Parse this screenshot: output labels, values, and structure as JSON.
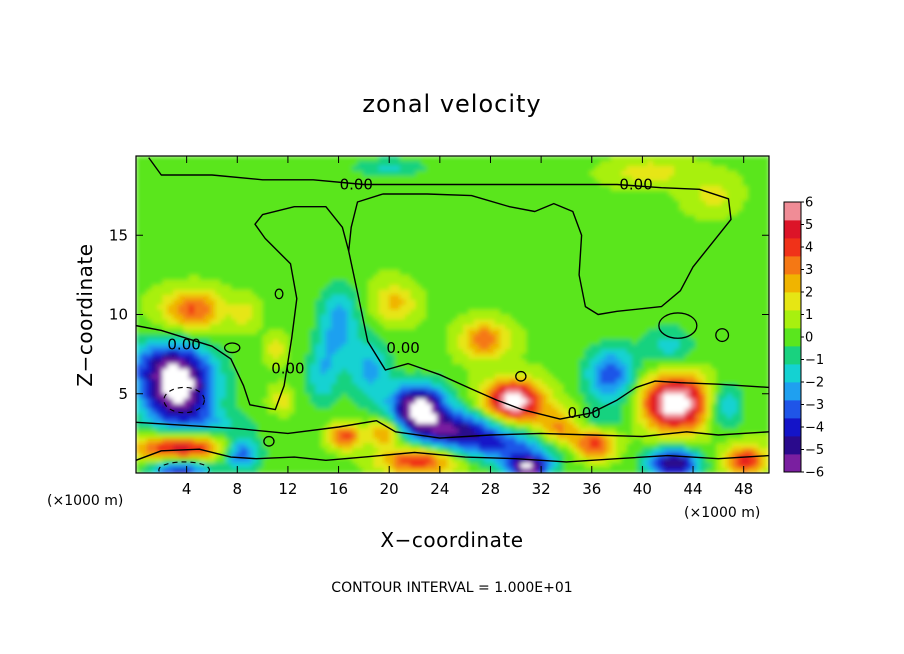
{
  "chart_data": {
    "type": "heatmap",
    "title": "zonal velocity",
    "xlabel": "X−coordinate",
    "ylabel": "Z−coordinate",
    "x_unit_left": "(×1000 m)",
    "x_unit_right": "(×1000 m)",
    "xlim": [
      0,
      50
    ],
    "ylim": [
      0,
      20
    ],
    "xticks": [
      4,
      8,
      12,
      16,
      20,
      24,
      28,
      32,
      36,
      40,
      44,
      48
    ],
    "yticks": [
      5,
      10,
      15
    ],
    "footer": "CONTOUR INTERVAL = 1.000E+01",
    "colorbar": {
      "range": [
        -6,
        6
      ],
      "tick_labels": [
        "6",
        "5",
        "4",
        "3",
        "2",
        "1",
        "0",
        "−1",
        "−2",
        "−3",
        "−4",
        "−5",
        "−6"
      ],
      "colors": [
        "#7a1fa0",
        "#2a0a8c",
        "#1414c8",
        "#1f55e8",
        "#1fa0f0",
        "#14d2d2",
        "#19d27f",
        "#5ae61e",
        "#a8f00f",
        "#e6e614",
        "#f0b400",
        "#f57814",
        "#f03219",
        "#dc1428",
        "#f08c96"
      ]
    },
    "contour_labels": [
      {
        "text": "0.00",
        "x": 17.4,
        "z": 18.2
      },
      {
        "text": "0.00",
        "x": 39.5,
        "z": 18.2
      },
      {
        "text": "0.00",
        "x": 3.8,
        "z": 8.1
      },
      {
        "text": "0.00",
        "x": 12.0,
        "z": 6.6
      },
      {
        "text": "0.00",
        "x": 21.1,
        "z": 7.9
      },
      {
        "text": "0.00",
        "x": 35.4,
        "z": 3.8
      }
    ],
    "features": [
      {
        "x": 4.5,
        "z": 10.3,
        "v": 3.6,
        "sx": 2.4,
        "sz": 1.3
      },
      {
        "x": 20.5,
        "z": 10.7,
        "v": 2.0,
        "sx": 1.7,
        "sz": 1.2
      },
      {
        "x": 27.5,
        "z": 8.4,
        "v": 3.2,
        "sx": 1.9,
        "sz": 1.2
      },
      {
        "x": 8.6,
        "z": 10.0,
        "v": 1.3,
        "sx": 1.0,
        "sz": 1.0
      },
      {
        "x": 3.3,
        "z": 5.2,
        "v": -6.8,
        "sx": 2.9,
        "sz": 2.3
      },
      {
        "x": 2.0,
        "z": 7.0,
        "v": -2.3,
        "sx": 3.5,
        "sz": 1.5
      },
      {
        "x": 16.0,
        "z": 9.5,
        "v": -2.8,
        "sx": 1.6,
        "sz": 2.5
      },
      {
        "x": 14.7,
        "z": 6.2,
        "v": -2.0,
        "sx": 1.3,
        "sz": 2.0
      },
      {
        "x": 18.5,
        "z": 6.5,
        "v": -2.5,
        "sx": 1.6,
        "sz": 2.0
      },
      {
        "x": 22.3,
        "z": 4.1,
        "v": -6.8,
        "sx": 2.2,
        "sz": 1.5
      },
      {
        "x": 25.5,
        "z": 2.6,
        "v": -5.0,
        "sx": 3.5,
        "sz": 1.3
      },
      {
        "x": 30.0,
        "z": 1.5,
        "v": -3.2,
        "sx": 3.5,
        "sz": 1.2
      },
      {
        "x": 29.8,
        "z": 4.5,
        "v": 6.8,
        "sx": 2.2,
        "sz": 1.3
      },
      {
        "x": 33.5,
        "z": 3.0,
        "v": 4.2,
        "sx": 2.0,
        "sz": 1.2
      },
      {
        "x": 36.3,
        "z": 1.8,
        "v": 4.0,
        "sx": 1.6,
        "sz": 1.0
      },
      {
        "x": 42.6,
        "z": 4.4,
        "v": 7.0,
        "sx": 2.6,
        "sz": 1.7
      },
      {
        "x": 37.5,
        "z": 6.2,
        "v": -3.6,
        "sx": 2.0,
        "sz": 1.8
      },
      {
        "x": 42.0,
        "z": 8.0,
        "v": -1.8,
        "sx": 2.0,
        "sz": 1.3
      },
      {
        "x": 46.5,
        "z": 4.2,
        "v": -2.5,
        "sx": 1.5,
        "sz": 1.5
      },
      {
        "x": 3.5,
        "z": 1.5,
        "v": 5.5,
        "sx": 3.5,
        "sz": 1.0
      },
      {
        "x": 3.5,
        "z": 0.3,
        "v": -5.2,
        "sx": 2.5,
        "sz": 0.8
      },
      {
        "x": 8.3,
        "z": 1.2,
        "v": -4.2,
        "sx": 1.5,
        "sz": 1.0
      },
      {
        "x": 16.5,
        "z": 2.3,
        "v": 3.8,
        "sx": 1.3,
        "sz": 0.8
      },
      {
        "x": 19.7,
        "z": 2.6,
        "v": 3.5,
        "sx": 1.3,
        "sz": 0.8
      },
      {
        "x": 22.3,
        "z": 0.8,
        "v": 4.2,
        "sx": 3.0,
        "sz": 0.9
      },
      {
        "x": 31.0,
        "z": 0.3,
        "v": -5.5,
        "sx": 1.6,
        "sz": 0.7
      },
      {
        "x": 42.5,
        "z": 0.6,
        "v": -5.6,
        "sx": 2.0,
        "sz": 1.0
      },
      {
        "x": 48.2,
        "z": 0.8,
        "v": 4.2,
        "sx": 1.5,
        "sz": 0.9
      },
      {
        "x": 35.0,
        "z": 3.3,
        "v": -1.8,
        "sx": 3.5,
        "sz": 0.9
      },
      {
        "x": 6.0,
        "z": 3.0,
        "v": -1.6,
        "sx": 3.5,
        "sz": 0.9
      },
      {
        "x": 20.0,
        "z": 19.3,
        "v": -1.6,
        "sx": 3.0,
        "sz": 0.6
      },
      {
        "x": 40.5,
        "z": 19.0,
        "v": 1.5,
        "sx": 3.0,
        "sz": 0.8
      },
      {
        "x": 45.5,
        "z": 17.5,
        "v": 1.3,
        "sx": 2.0,
        "sz": 1.2
      },
      {
        "x": 11.5,
        "z": 4.6,
        "v": 1.5,
        "sx": 0.9,
        "sz": 0.8
      },
      {
        "x": 11.0,
        "z": 7.8,
        "v": 1.5,
        "sx": 0.8,
        "sz": 0.8
      }
    ],
    "zero_contours": [
      [
        [
          0,
          9.3
        ],
        [
          2.0,
          9.0
        ],
        [
          4.0,
          8.5
        ],
        [
          6.0,
          8.0
        ],
        [
          7.5,
          7.2
        ],
        [
          8.5,
          5.5
        ],
        [
          9.0,
          4.3
        ],
        [
          11.0,
          4.0
        ],
        [
          11.7,
          5.5
        ],
        [
          12.3,
          8.5
        ],
        [
          12.7,
          11.0
        ],
        [
          12.2,
          13.2
        ],
        [
          10.2,
          14.8
        ],
        [
          9.4,
          15.7
        ],
        [
          10.0,
          16.3
        ],
        [
          12.5,
          16.8
        ],
        [
          15.0,
          16.8
        ],
        [
          16.3,
          15.5
        ],
        [
          16.8,
          14.0
        ],
        [
          17.6,
          11.0
        ],
        [
          18.3,
          8.3
        ],
        [
          19.7,
          6.5
        ],
        [
          21.5,
          6.9
        ],
        [
          24.0,
          6.2
        ],
        [
          26.5,
          5.3
        ],
        [
          28.5,
          4.6
        ],
        [
          30.5,
          4.0
        ],
        [
          33.5,
          3.4
        ],
        [
          36.0,
          3.8
        ],
        [
          38.0,
          4.6
        ],
        [
          39.5,
          5.4
        ],
        [
          41.0,
          5.8
        ],
        [
          43.0,
          5.7
        ],
        [
          46.0,
          5.6
        ],
        [
          48.0,
          5.5
        ],
        [
          50.0,
          5.4
        ]
      ],
      [
        [
          1.0,
          19.9
        ],
        [
          2.0,
          18.8
        ],
        [
          6.0,
          18.8
        ],
        [
          10.0,
          18.5
        ],
        [
          14.0,
          18.5
        ],
        [
          18.0,
          18.2
        ],
        [
          23.0,
          18.2
        ],
        [
          28.5,
          18.2
        ],
        [
          33.0,
          18.2
        ],
        [
          38.0,
          18.2
        ],
        [
          41.5,
          18.0
        ],
        [
          44.5,
          17.9
        ],
        [
          46.8,
          17.3
        ],
        [
          47.0,
          16.0
        ],
        [
          45.5,
          14.5
        ],
        [
          44.0,
          13.0
        ],
        [
          43.0,
          11.5
        ],
        [
          41.5,
          10.5
        ],
        [
          38.0,
          10.2
        ],
        [
          36.5,
          10.0
        ],
        [
          35.5,
          10.5
        ],
        [
          35.0,
          12.5
        ],
        [
          35.2,
          15.0
        ],
        [
          34.5,
          16.5
        ],
        [
          33.0,
          17.0
        ],
        [
          31.5,
          16.5
        ],
        [
          29.5,
          16.8
        ],
        [
          26.5,
          17.5
        ],
        [
          23.0,
          17.6
        ],
        [
          19.5,
          17.6
        ],
        [
          17.5,
          17.1
        ],
        [
          17.0,
          15.5
        ],
        [
          16.8,
          14.0
        ]
      ],
      [
        [
          0,
          3.2
        ],
        [
          4.0,
          3.0
        ],
        [
          8.0,
          2.8
        ],
        [
          12.0,
          2.5
        ],
        [
          16.0,
          2.9
        ],
        [
          19.0,
          3.3
        ],
        [
          20.5,
          2.6
        ],
        [
          24.0,
          2.2
        ],
        [
          28.0,
          2.4
        ],
        [
          32.0,
          2.5
        ],
        [
          36.0,
          2.4
        ],
        [
          40.0,
          2.3
        ],
        [
          43.5,
          2.6
        ],
        [
          46.0,
          2.4
        ],
        [
          50.0,
          2.6
        ]
      ],
      [
        [
          0,
          0.8
        ],
        [
          2.0,
          1.4
        ],
        [
          5.0,
          1.5
        ],
        [
          7.5,
          1.0
        ],
        [
          9.5,
          0.9
        ],
        [
          12.5,
          1.0
        ],
        [
          15.0,
          0.8
        ],
        [
          18.0,
          1.0
        ],
        [
          22.0,
          1.3
        ],
        [
          26.0,
          1.0
        ],
        [
          30.0,
          0.9
        ],
        [
          34.0,
          0.7
        ],
        [
          38.0,
          0.9
        ],
        [
          42.0,
          1.1
        ],
        [
          46.0,
          0.9
        ],
        [
          50.0,
          1.1
        ]
      ]
    ],
    "small_contours": [
      {
        "x": 42.8,
        "z": 9.3,
        "rx": 1.5,
        "rz": 0.8
      },
      {
        "x": 46.3,
        "z": 8.7,
        "rx": 0.5,
        "rz": 0.4
      },
      {
        "x": 11.3,
        "z": 11.3,
        "rx": 0.3,
        "rz": 0.3
      },
      {
        "x": 7.6,
        "z": 7.9,
        "rx": 0.6,
        "rz": 0.3
      },
      {
        "x": 30.4,
        "z": 6.1,
        "rx": 0.4,
        "rz": 0.3
      },
      {
        "x": 10.5,
        "z": 2.0,
        "rx": 0.4,
        "rz": 0.3
      }
    ],
    "negative_contours": [
      {
        "x": 3.8,
        "z": 4.6,
        "rx": 1.6,
        "rz": 0.8
      },
      {
        "x": 3.8,
        "z": 0.2,
        "rx": 2.0,
        "rz": 0.5
      }
    ]
  }
}
